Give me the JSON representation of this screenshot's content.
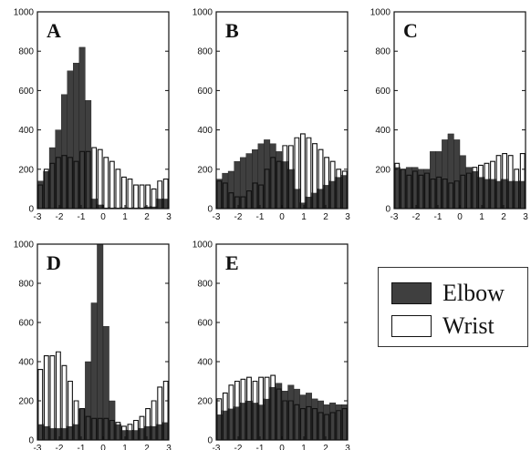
{
  "colors": {
    "elbow": "#3f3f3f",
    "elbow_stroke": "#1a1a1a",
    "wrist": "#ffffff",
    "wrist_stroke": "#111111",
    "axis": "#111111"
  },
  "legend": [
    {
      "label": "Elbow",
      "color": "#3f3f3f"
    },
    {
      "label": "Wrist",
      "color": "#ffffff"
    }
  ],
  "chart_data": [
    {
      "panel": "A",
      "type": "bar",
      "xlim": [
        -3,
        3
      ],
      "ylim": [
        0,
        1000
      ],
      "x_ticks": [
        "-3",
        "-2",
        "-1",
        "0",
        "1",
        "2",
        "3"
      ],
      "y_ticks": [
        "0",
        "200",
        "400",
        "600",
        "800",
        "1000"
      ],
      "series": [
        {
          "name": "Elbow",
          "values": [
            140,
            190,
            310,
            400,
            580,
            700,
            740,
            820,
            550,
            50,
            20,
            5,
            5,
            5,
            5,
            5,
            5,
            5,
            10,
            10,
            50,
            50
          ]
        },
        {
          "name": "Wrist",
          "values": [
            120,
            200,
            230,
            260,
            270,
            260,
            240,
            290,
            290,
            310,
            300,
            260,
            240,
            200,
            160,
            150,
            120,
            120,
            120,
            100,
            140,
            150
          ]
        }
      ]
    },
    {
      "panel": "B",
      "type": "bar",
      "xlim": [
        -3,
        3
      ],
      "ylim": [
        0,
        1000
      ],
      "x_ticks": [
        "-3",
        "-2",
        "-1",
        "0",
        "1",
        "2",
        "3"
      ],
      "y_ticks": [
        "0",
        "200",
        "400",
        "600",
        "800",
        "1000"
      ],
      "series": [
        {
          "name": "Elbow",
          "values": [
            150,
            180,
            190,
            240,
            260,
            280,
            300,
            330,
            350,
            330,
            290,
            240,
            200,
            100,
            30,
            60,
            80,
            100,
            120,
            140,
            160,
            170
          ]
        },
        {
          "name": "Wrist",
          "values": [
            140,
            130,
            80,
            60,
            60,
            90,
            130,
            120,
            200,
            260,
            240,
            320,
            320,
            360,
            380,
            360,
            330,
            300,
            260,
            240,
            200,
            190
          ]
        }
      ]
    },
    {
      "panel": "C",
      "type": "bar",
      "xlim": [
        -3,
        3
      ],
      "ylim": [
        0,
        1000
      ],
      "x_ticks": [
        "-3",
        "-2",
        "-1",
        "0",
        "1",
        "2",
        "3"
      ],
      "y_ticks": [
        "0",
        "200",
        "400",
        "600",
        "800",
        "1000"
      ],
      "series": [
        {
          "name": "Elbow",
          "values": [
            210,
            200,
            210,
            210,
            200,
            200,
            290,
            290,
            350,
            380,
            350,
            270,
            210,
            190,
            160,
            150,
            150,
            140,
            150,
            140,
            140,
            140
          ]
        },
        {
          "name": "Wrist",
          "values": [
            230,
            200,
            170,
            190,
            170,
            180,
            150,
            160,
            150,
            130,
            140,
            170,
            180,
            210,
            220,
            230,
            240,
            270,
            280,
            270,
            200,
            280
          ]
        }
      ]
    },
    {
      "panel": "D",
      "type": "bar",
      "xlim": [
        -3,
        3
      ],
      "ylim": [
        0,
        1000
      ],
      "x_ticks": [
        "-3",
        "-2",
        "-1",
        "0",
        "1",
        "2",
        "3"
      ],
      "y_ticks": [
        "0",
        "200",
        "400",
        "600",
        "800",
        "1000"
      ],
      "series": [
        {
          "name": "Elbow",
          "values": [
            80,
            70,
            60,
            60,
            60,
            70,
            80,
            160,
            400,
            700,
            1000,
            580,
            200,
            80,
            50,
            50,
            50,
            60,
            70,
            70,
            80,
            90
          ]
        },
        {
          "name": "Wrist",
          "values": [
            360,
            430,
            430,
            450,
            380,
            300,
            200,
            160,
            120,
            110,
            110,
            110,
            100,
            90,
            70,
            80,
            100,
            120,
            160,
            200,
            270,
            300
          ]
        }
      ]
    },
    {
      "panel": "E",
      "type": "bar",
      "xlim": [
        -3,
        3
      ],
      "ylim": [
        0,
        1000
      ],
      "x_ticks": [
        "-3",
        "-2",
        "-1",
        "0",
        "1",
        "2",
        "3"
      ],
      "y_ticks": [
        "0",
        "200",
        "400",
        "600",
        "800",
        "1000"
      ],
      "series": [
        {
          "name": "Elbow",
          "values": [
            130,
            150,
            160,
            170,
            190,
            200,
            190,
            180,
            210,
            270,
            290,
            250,
            280,
            260,
            230,
            240,
            210,
            200,
            180,
            190,
            180,
            180
          ]
        },
        {
          "name": "Wrist",
          "values": [
            210,
            240,
            280,
            300,
            310,
            320,
            300,
            320,
            320,
            330,
            260,
            200,
            200,
            180,
            160,
            170,
            160,
            140,
            130,
            140,
            150,
            160
          ]
        }
      ]
    }
  ]
}
